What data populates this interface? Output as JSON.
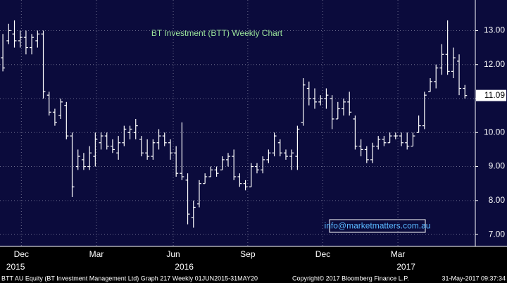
{
  "chart_data": {
    "type": "ohlc",
    "title": "BT Investment (BTT) Weekly Chart",
    "open": [
      12.2,
      12.7,
      12.9,
      12.7,
      12.8,
      12.5,
      12.7,
      12.9,
      11.1,
      10.6,
      10.5,
      10.8,
      9.9,
      9.0,
      9.2,
      9.0,
      9.3,
      9.7,
      9.9,
      9.6,
      9.4,
      9.7,
      10.0,
      10.0,
      9.8,
      9.4,
      9.3,
      9.7,
      9.9,
      9.7,
      9.4,
      8.8,
      8.6,
      7.5,
      7.9,
      8.5,
      8.7,
      8.9,
      8.9,
      9.2,
      9.3,
      8.7,
      8.5,
      8.4,
      9.0,
      8.9,
      9.2,
      9.4,
      9.7,
      9.4,
      9.3,
      9.3,
      10.3,
      11.3,
      11.0,
      10.9,
      11.0,
      11.0,
      10.4,
      10.7,
      10.9,
      10.4,
      9.6,
      9.5,
      9.2,
      9.6,
      9.8,
      9.7,
      9.9,
      9.9,
      9.7,
      9.6,
      10.0,
      10.2,
      11.2,
      11.5,
      11.9,
      12.3,
      11.8,
      12.1,
      11.3
    ],
    "high": [
      12.9,
      13.2,
      13.3,
      13.0,
      13.0,
      12.9,
      13.0,
      13.0,
      11.2,
      10.7,
      11.0,
      10.9,
      10.0,
      9.5,
      9.4,
      9.6,
      10.0,
      10.0,
      10.0,
      9.8,
      9.9,
      10.2,
      10.2,
      10.4,
      9.9,
      9.8,
      9.8,
      10.1,
      10.0,
      9.8,
      9.6,
      10.3,
      8.8,
      8.0,
      8.6,
      8.8,
      9.0,
      9.0,
      9.3,
      9.4,
      9.5,
      8.8,
      8.6,
      9.1,
      9.1,
      9.3,
      9.5,
      10.0,
      9.8,
      9.5,
      9.5,
      10.2,
      11.6,
      11.5,
      11.3,
      11.1,
      11.3,
      11.1,
      10.9,
      11.0,
      11.2,
      10.5,
      9.8,
      9.6,
      9.7,
      9.9,
      9.9,
      10.0,
      10.0,
      10.0,
      10.0,
      10.0,
      10.5,
      11.2,
      11.6,
      12.0,
      12.6,
      13.3,
      12.5,
      12.3,
      11.4
    ],
    "low": [
      11.8,
      12.6,
      12.5,
      12.5,
      12.3,
      12.3,
      12.5,
      11.0,
      10.5,
      10.2,
      10.4,
      9.8,
      8.1,
      8.9,
      8.9,
      8.9,
      9.0,
      9.5,
      9.5,
      9.4,
      9.2,
      9.6,
      9.8,
      9.8,
      9.3,
      9.2,
      9.2,
      9.5,
      9.6,
      9.2,
      8.7,
      8.6,
      7.3,
      7.2,
      7.8,
      8.5,
      8.7,
      8.7,
      8.9,
      9.0,
      8.6,
      8.4,
      8.3,
      8.4,
      8.8,
      8.8,
      9.1,
      9.3,
      9.3,
      9.2,
      8.9,
      8.9,
      10.2,
      10.8,
      10.7,
      10.8,
      10.7,
      10.1,
      10.4,
      10.5,
      10.5,
      9.5,
      9.3,
      9.1,
      9.1,
      9.5,
      9.6,
      9.7,
      9.8,
      9.6,
      9.5,
      9.6,
      10.0,
      10.1,
      11.2,
      11.3,
      11.7,
      11.7,
      11.6,
      11.1,
      11.0
    ],
    "close": [
      11.9,
      13.0,
      12.7,
      12.8,
      12.5,
      12.8,
      12.9,
      11.2,
      10.6,
      10.3,
      10.9,
      9.9,
      8.4,
      9.3,
      9.0,
      9.4,
      9.8,
      9.9,
      9.6,
      9.5,
      9.7,
      10.1,
      10.1,
      10.2,
      9.4,
      9.3,
      9.7,
      9.9,
      9.7,
      9.4,
      8.8,
      8.7,
      7.6,
      7.8,
      8.5,
      8.7,
      8.9,
      8.8,
      9.2,
      9.3,
      8.7,
      8.5,
      8.4,
      9.0,
      8.9,
      9.2,
      9.4,
      9.9,
      9.4,
      9.3,
      9.4,
      10.1,
      11.4,
      11.0,
      10.9,
      11.0,
      11.1,
      10.4,
      10.7,
      10.9,
      10.6,
      9.6,
      9.5,
      9.2,
      9.6,
      9.8,
      9.7,
      9.9,
      9.9,
      9.7,
      9.6,
      9.9,
      10.2,
      11.1,
      11.5,
      11.9,
      12.3,
      11.8,
      12.2,
      11.3,
      11.09
    ],
    "color": "#ffffff",
    "xlim": [
      -0.5,
      81.8
    ],
    "xticks": [
      {
        "value": 3.2,
        "label": "Dec"
      },
      {
        "value": 16.2,
        "label": "Mar"
      },
      {
        "value": 29.5,
        "label": "Jun"
      },
      {
        "value": 42.4,
        "label": "Sep"
      },
      {
        "value": 55.4,
        "label": "Dec"
      },
      {
        "value": 68.4,
        "label": "Mar"
      }
    ],
    "year_ticks": [
      {
        "value": 2.2,
        "label": "2015"
      },
      {
        "value": 31.4,
        "label": "2016"
      },
      {
        "value": 69.8,
        "label": "2017"
      }
    ],
    "ylim": [
      6.65,
      13.9
    ],
    "yticks": [
      {
        "value": 7,
        "label": "7.00"
      },
      {
        "value": 8,
        "label": "8.00"
      },
      {
        "value": 9,
        "label": "9.00"
      },
      {
        "value": 10,
        "label": "10.00"
      },
      {
        "value": 11,
        "label": "11.00"
      },
      {
        "value": 12,
        "label": "12.00"
      },
      {
        "value": 13,
        "label": "13.00"
      }
    ],
    "grid": true,
    "watermark": "info@marketmatters.com.au",
    "footer": {
      "left": "BTT AU Equity (BT Investment Management Ltd) Graph 217  Weekly 01JUN2015-31MAY20",
      "center": "Copyright© 2017 Bloomberg Finance L.P.",
      "right": "31-May-2017 09:37:34"
    }
  }
}
